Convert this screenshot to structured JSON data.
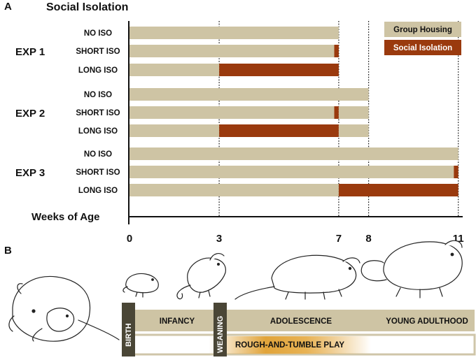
{
  "panel_a": {
    "letter": "A",
    "title": "Social Isolation",
    "x_axis_label": "Weeks of Age",
    "x_ticks": [
      0,
      3,
      7,
      8,
      11
    ],
    "legend": [
      {
        "label": "Group Housing",
        "color": "#cec4a4"
      },
      {
        "label": "Social Isolation",
        "color": "#9a3a0e"
      }
    ]
  },
  "chart_data": {
    "type": "bar",
    "orientation": "horizontal",
    "title": "Social Isolation",
    "xlabel": "Weeks of Age",
    "xlim": [
      0,
      11
    ],
    "x_ticks": [
      0,
      3,
      7,
      8,
      11
    ],
    "gridlines_at": [
      3,
      7,
      8,
      11
    ],
    "experiments": [
      {
        "name": "EXP 1",
        "rows": [
          {
            "label": "NO ISO",
            "segments": [
              {
                "kind": "group",
                "start": 0,
                "end": 7
              }
            ]
          },
          {
            "label": "SHORT ISO",
            "segments": [
              {
                "kind": "group",
                "start": 0,
                "end": 6.85
              },
              {
                "kind": "iso",
                "start": 6.85,
                "end": 7
              }
            ]
          },
          {
            "label": "LONG ISO",
            "segments": [
              {
                "kind": "group",
                "start": 0,
                "end": 3
              },
              {
                "kind": "iso",
                "start": 3,
                "end": 7
              }
            ]
          }
        ]
      },
      {
        "name": "EXP 2",
        "rows": [
          {
            "label": "NO ISO",
            "segments": [
              {
                "kind": "group",
                "start": 0,
                "end": 8
              }
            ]
          },
          {
            "label": "SHORT ISO",
            "segments": [
              {
                "kind": "group",
                "start": 0,
                "end": 6.85
              },
              {
                "kind": "iso",
                "start": 6.85,
                "end": 7
              },
              {
                "kind": "group",
                "start": 7,
                "end": 8
              }
            ]
          },
          {
            "label": "LONG ISO",
            "segments": [
              {
                "kind": "group",
                "start": 0,
                "end": 3
              },
              {
                "kind": "iso",
                "start": 3,
                "end": 7
              },
              {
                "kind": "group",
                "start": 7,
                "end": 8
              }
            ]
          }
        ]
      },
      {
        "name": "EXP 3",
        "rows": [
          {
            "label": "NO ISO",
            "segments": [
              {
                "kind": "group",
                "start": 0,
                "end": 11
              }
            ]
          },
          {
            "label": "SHORT ISO",
            "segments": [
              {
                "kind": "group",
                "start": 0,
                "end": 10.85
              },
              {
                "kind": "iso",
                "start": 10.85,
                "end": 11
              }
            ]
          },
          {
            "label": "LONG ISO",
            "segments": [
              {
                "kind": "group",
                "start": 0,
                "end": 7
              },
              {
                "kind": "iso",
                "start": 7,
                "end": 11
              }
            ]
          }
        ]
      }
    ]
  },
  "panel_b": {
    "letter": "B",
    "birth_label": "BIRTH",
    "weaning_label": "WEANING",
    "stages": {
      "infancy": "INFANCY",
      "adolescence": "ADOLESCENCE",
      "young_adulthood": "YOUNG ADULTHOOD"
    },
    "play_label": "ROUGH-AND-TUMBLE PLAY",
    "colors": {
      "stage_band": "#cec4a4",
      "marker": "#4a4636",
      "play": "#e1a43a"
    }
  }
}
